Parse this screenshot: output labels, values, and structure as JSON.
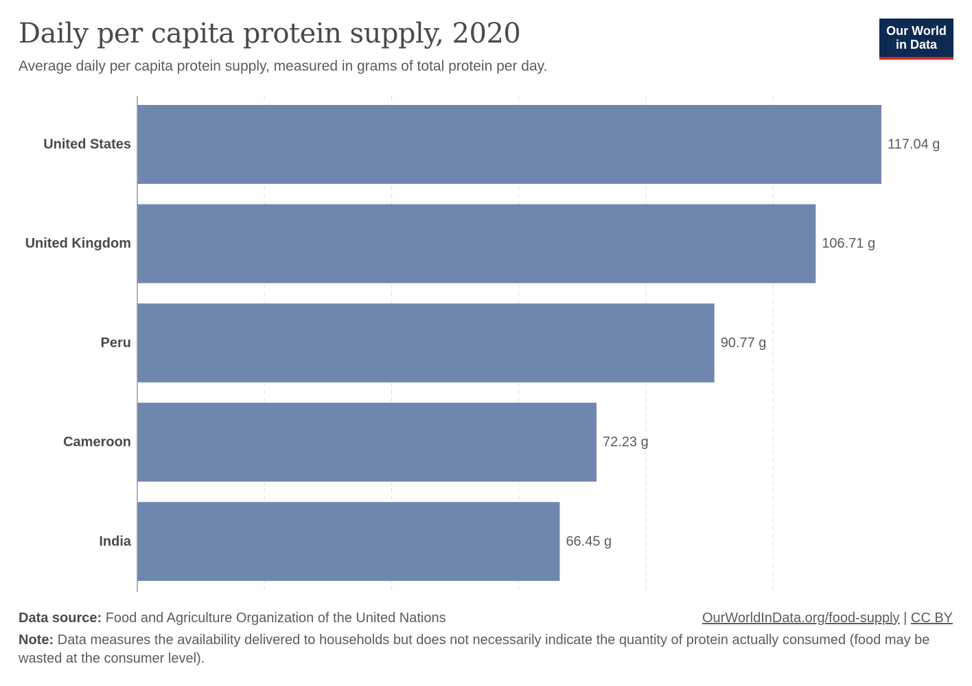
{
  "header": {
    "title": "Daily per capita protein supply, 2020",
    "subtitle": "Average daily per capita protein supply, measured in grams of total protein per day."
  },
  "logo": {
    "line1": "Our World",
    "line2": "in Data"
  },
  "colors": {
    "bar": "#6f87ae",
    "grid": "#dddddd",
    "axis": "#999999",
    "logo_bg": "#0d2a52",
    "logo_accent": "#d42b21"
  },
  "chart_data": {
    "type": "bar",
    "orientation": "horizontal",
    "title": "Daily per capita protein supply, 2020",
    "categories": [
      "United States",
      "United Kingdom",
      "Peru",
      "Cameroon",
      "India"
    ],
    "values": [
      117.04,
      106.71,
      90.77,
      72.23,
      66.45
    ],
    "value_labels": [
      "117.04 g",
      "106.71 g",
      "90.77 g",
      "72.23 g",
      "66.45 g"
    ],
    "unit": "g",
    "xlim": [
      0,
      117.04
    ],
    "gridlines": [
      20,
      40,
      60,
      80,
      100
    ],
    "xlabel": "",
    "ylabel": ""
  },
  "footer": {
    "source_label": "Data source:",
    "source_text": "Food and Agriculture Organization of the United Nations",
    "link_text": "OurWorldInData.org/food-supply",
    "separator": "|",
    "license_text": "CC BY",
    "note_label": "Note:",
    "note_text": "Data measures the availability delivered to households but does not necessarily indicate the quantity of protein actually consumed (food may be wasted at the consumer level)."
  }
}
